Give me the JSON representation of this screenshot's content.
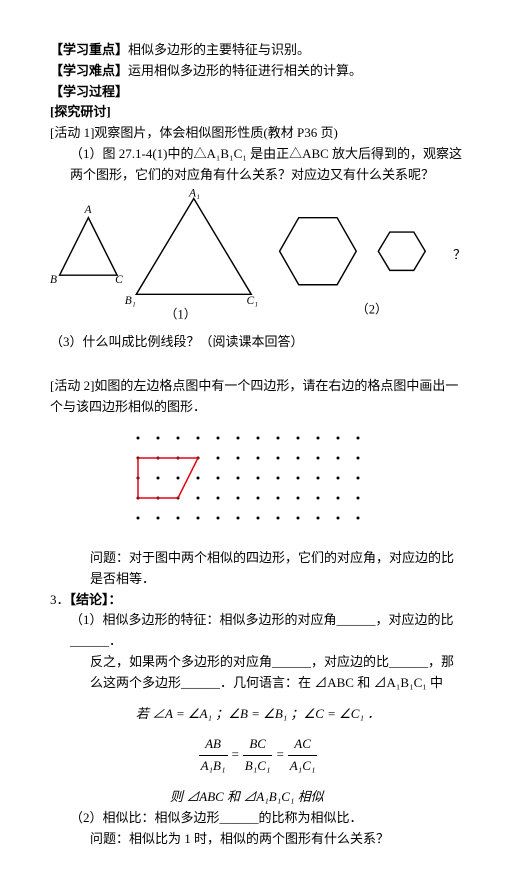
{
  "heading1": {
    "label": "【学习重点】",
    "text": "相似多边形的主要特征与识别。"
  },
  "heading2": {
    "label": "【学习难点】",
    "text": "运用相似多边形的特征进行相关的计算。"
  },
  "heading3": {
    "label": "【学习过程】"
  },
  "heading4": {
    "label": "[探究研讨]"
  },
  "activity1": {
    "title": "[活动 1]观察图片，体会相似图形性质(教材 P36 页)",
    "q1": "（1）图 27.1-4(1)中的△A₁B₁C₁ 是由正△ABC 放大后得到的，观察这两个图形，它们的对应角有什么关系？对应边又有什么关系呢？",
    "fig1_label": "（1）",
    "fig2_label": "（2）",
    "q3": "（3）什么叫成比例线段？（阅读课本回答）",
    "tri1": {
      "A": "A",
      "B": "B",
      "C": "C"
    },
    "tri2": {
      "A": "A₁",
      "B": "B₁",
      "C": "C₁"
    },
    "qmark": "？"
  },
  "activity2": {
    "title": "[活动 2]如图的左边格点图中有一个四边形，请在右边的格点图中画出一个与该四边形相似的图形．",
    "question": "问题：对于图中两个相似的四边形，它们的对应角，对应边的比是否相等．",
    "grid": {
      "cols": 12,
      "rows": 5,
      "spacing": 20,
      "dot_color": "#000000",
      "poly_color": "#e30613",
      "poly_points": [
        [
          0,
          1
        ],
        [
          3,
          1
        ],
        [
          2,
          3
        ],
        [
          0,
          3
        ]
      ]
    }
  },
  "conclusion": {
    "num": "3．",
    "label": "【结论】：",
    "c1a": "（1）相似多边形的特征：相似多边形的对应角______，对应边的比______．",
    "c1b": "反之，如果两个多边形的对应角______，对应边的比______，那么这两个多边形______．几何语言：在 ⊿ABC 和 ⊿A₁B₁C₁ 中",
    "math1": "若 ∠A = ∠A₁ ；∠B = ∠B₁ ；∠C = ∠C₁ ．",
    "frac": {
      "n1": "AB",
      "d1": "A₁B₁",
      "n2": "BC",
      "d2": "B₁C₁",
      "n3": "AC",
      "d3": "A₁C₁"
    },
    "then": "则 ⊿ABC 和 ⊿A₁B₁C₁ 相似",
    "c2": "（2）相似比：相似多边形______的比称为相似比．",
    "q": "问题：相似比为 1 时，相似的两个图形有什么关系？"
  }
}
